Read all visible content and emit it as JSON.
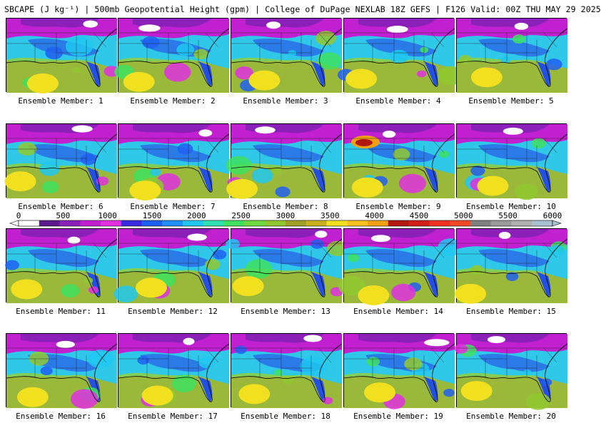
{
  "title": "SBCAPE (J kg⁻¹) | 500mb Geopotential Height (gpm) | College of DuPage NEXLAB 18Z GEFS | F126 Valid: 00Z THU MAY 29 2025",
  "members": [
    {
      "label": "Ensemble Member: 1"
    },
    {
      "label": "Ensemble Member: 2"
    },
    {
      "label": "Ensemble Member: 3"
    },
    {
      "label": "Ensemble Member: 4"
    },
    {
      "label": "Ensemble Member: 5"
    },
    {
      "label": "Ensemble Member: 6"
    },
    {
      "label": "Ensemble Member: 7"
    },
    {
      "label": "Ensemble Member: 8"
    },
    {
      "label": "Ensemble Member: 9"
    },
    {
      "label": "Ensemble Member: 10"
    },
    {
      "label": "Ensemble Member: 11"
    },
    {
      "label": "Ensemble Member: 12"
    },
    {
      "label": "Ensemble Member: 13"
    },
    {
      "label": "Ensemble Member: 14"
    },
    {
      "label": "Ensemble Member: 15"
    },
    {
      "label": "Ensemble Member: 16"
    },
    {
      "label": "Ensemble Member: 17"
    },
    {
      "label": "Ensemble Member: 18"
    },
    {
      "label": "Ensemble Member: 19"
    },
    {
      "label": "Ensemble Member: 20"
    }
  ],
  "colorbar": {
    "ticks": [
      "0",
      "500",
      "1000",
      "1500",
      "2000",
      "2500",
      "3000",
      "3500",
      "4000",
      "4500",
      "5000",
      "5500",
      "6000"
    ],
    "colors": [
      "#ffffff",
      "#5c1a8c",
      "#8a20b8",
      "#c020d0",
      "#e030e0",
      "#3a2ae0",
      "#2060f0",
      "#2090f8",
      "#20c8f0",
      "#30e0b0",
      "#40e060",
      "#70d840",
      "#90c830",
      "#a0a028",
      "#c8b020",
      "#f0e020",
      "#f8c020",
      "#f0a010",
      "#b01810",
      "#d02018",
      "#f03020",
      "#f04828",
      "#808080",
      "#9a9a9a",
      "#b0b0b0",
      "#a8c0d0"
    ]
  }
}
